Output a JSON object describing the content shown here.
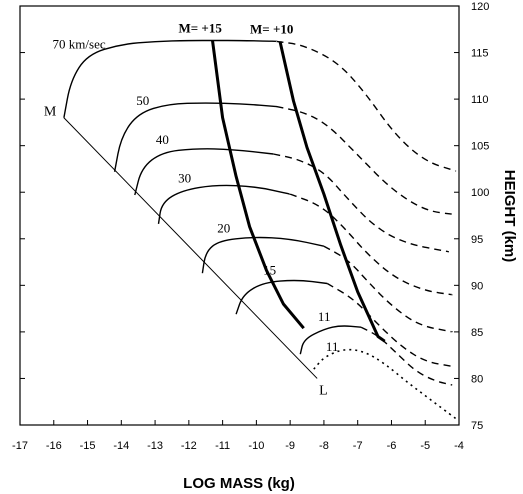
{
  "chart_data": {
    "type": "line",
    "xlabel": "LOG MASS (kg)",
    "ylabel": "HEIGHT (km)",
    "xlim": [
      -17,
      -4
    ],
    "ylim": [
      75,
      120
    ],
    "x_ticks": [
      "-17",
      "-16",
      "-15",
      "-14",
      "-13",
      "-12",
      "-11",
      "-10",
      "-9",
      "-8",
      "-7",
      "-6",
      "-5",
      "-4"
    ],
    "y_ticks": [
      "75",
      "80",
      "85",
      "90",
      "95",
      "100",
      "105",
      "110",
      "115",
      "120"
    ],
    "boundary_line": {
      "labels": [
        "M",
        "L"
      ],
      "x": [
        -15.7,
        -8.2
      ],
      "y": [
        108,
        80
      ]
    },
    "velocity_curves": [
      {
        "label": "70 km/sec",
        "solid": [
          [
            -15.7,
            108
          ],
          [
            -15.5,
            112
          ],
          [
            -15.0,
            114.8
          ],
          [
            -14.0,
            115.9
          ],
          [
            -13.0,
            116.2
          ],
          [
            -12.0,
            116.3
          ],
          [
            -11.2,
            116.3
          ],
          [
            -10.5,
            116.3
          ],
          [
            -9.4,
            116.2
          ]
        ],
        "dashed": [
          [
            -9.4,
            116.2
          ],
          [
            -8.6,
            115.8
          ],
          [
            -7.6,
            114
          ],
          [
            -6.8,
            110.8
          ],
          [
            -5.9,
            106.2
          ],
          [
            -5.0,
            103.3
          ],
          [
            -4.1,
            102.3
          ]
        ]
      },
      {
        "label": "50",
        "solid": [
          [
            -14.2,
            102.2
          ],
          [
            -14.0,
            106
          ],
          [
            -13.5,
            108.5
          ],
          [
            -12.6,
            109.5
          ],
          [
            -11.5,
            109.6
          ],
          [
            -10.4,
            109.5
          ],
          [
            -9.4,
            109.2
          ]
        ],
        "dashed": [
          [
            -9.4,
            109.2
          ],
          [
            -8.6,
            108.6
          ],
          [
            -7.9,
            107.3
          ],
          [
            -7.0,
            104
          ],
          [
            -6.0,
            100.3
          ],
          [
            -5.0,
            98
          ],
          [
            -4.1,
            97.6
          ]
        ]
      },
      {
        "label": "40",
        "solid": [
          [
            -13.6,
            99.7
          ],
          [
            -13.4,
            102.6
          ],
          [
            -12.8,
            104.3
          ],
          [
            -11.8,
            104.7
          ],
          [
            -10.7,
            104.6
          ],
          [
            -9.5,
            104.1
          ]
        ],
        "dashed": [
          [
            -9.5,
            104.1
          ],
          [
            -8.8,
            103.6
          ],
          [
            -8.0,
            102.2
          ],
          [
            -7.3,
            99.3
          ],
          [
            -6.5,
            96.3
          ],
          [
            -5.6,
            94.5
          ],
          [
            -4.3,
            93.6
          ]
        ]
      },
      {
        "label": "30",
        "solid": [
          [
            -12.9,
            96.6
          ],
          [
            -12.8,
            98.9
          ],
          [
            -12.2,
            100.2
          ],
          [
            -11.2,
            100.8
          ],
          [
            -10.0,
            100.6
          ],
          [
            -9.0,
            99.8
          ]
        ],
        "dashed": [
          [
            -9.0,
            99.8
          ],
          [
            -8.1,
            98.6
          ],
          [
            -7.4,
            96.2
          ],
          [
            -6.7,
            93.3
          ],
          [
            -5.9,
            90.8
          ],
          [
            -5.0,
            89.4
          ],
          [
            -4.2,
            89.0
          ]
        ]
      },
      {
        "label": "20",
        "solid": [
          [
            -11.6,
            91.3
          ],
          [
            -11.5,
            93.6
          ],
          [
            -11.1,
            94.8
          ],
          [
            -10.1,
            95.2
          ],
          [
            -9.0,
            95
          ],
          [
            -8.0,
            94.2
          ]
        ],
        "dashed": [
          [
            -8.0,
            94.2
          ],
          [
            -7.3,
            92.8
          ],
          [
            -6.7,
            90.4
          ],
          [
            -6.0,
            87.8
          ],
          [
            -5.2,
            85.7
          ],
          [
            -4.2,
            85.0
          ]
        ]
      },
      {
        "label": "15",
        "solid": [
          [
            -10.6,
            86.9
          ],
          [
            -10.4,
            89.0
          ],
          [
            -9.8,
            90.3
          ],
          [
            -8.8,
            90.6
          ],
          [
            -7.9,
            90.2
          ]
        ],
        "dashed": [
          [
            -7.9,
            90.2
          ],
          [
            -7.1,
            88.5
          ],
          [
            -6.4,
            85.8
          ],
          [
            -5.7,
            83.4
          ],
          [
            -5.0,
            81.8
          ],
          [
            -4.2,
            81.3
          ]
        ]
      },
      {
        "label": "11",
        "solid": [
          [
            -8.7,
            82.6
          ],
          [
            -8.6,
            84.2
          ],
          [
            -8.0,
            85.3
          ],
          [
            -7.5,
            85.7
          ],
          [
            -6.9,
            85.5
          ]
        ],
        "dashed": [
          [
            -6.9,
            85.5
          ],
          [
            -6.4,
            84.6
          ],
          [
            -5.9,
            82.9
          ],
          [
            -5.3,
            80.8
          ],
          [
            -4.7,
            79.7
          ],
          [
            -4.2,
            79.3
          ]
        ]
      }
    ],
    "dotted_curve": {
      "label": "11",
      "points": [
        [
          -8.3,
          81
        ],
        [
          -8.0,
          82.3
        ],
        [
          -7.4,
          83.2
        ],
        [
          -6.8,
          82.9
        ],
        [
          -6.2,
          81.6
        ],
        [
          -5.5,
          79.5
        ],
        [
          -4.8,
          77.6
        ],
        [
          -4.1,
          75.7
        ]
      ]
    },
    "magnitude_lines": [
      {
        "label": "M= +15",
        "points": [
          [
            -11.3,
            116.3
          ],
          [
            -11.0,
            108
          ],
          [
            -10.6,
            101.7
          ],
          [
            -10.2,
            96.3
          ],
          [
            -9.7,
            91.6
          ],
          [
            -9.2,
            88
          ],
          [
            -8.6,
            85.4
          ]
        ]
      },
      {
        "label": "M= +10",
        "points": [
          [
            -9.3,
            116.2
          ],
          [
            -8.9,
            109.8
          ],
          [
            -8.5,
            104.8
          ],
          [
            -8.0,
            99.8
          ],
          [
            -7.5,
            94.3
          ],
          [
            -7.0,
            89.3
          ],
          [
            -6.4,
            84.5
          ],
          [
            -6.2,
            84.0
          ]
        ]
      }
    ]
  }
}
